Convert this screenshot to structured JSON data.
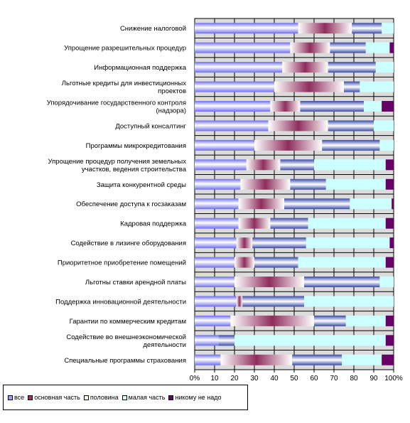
{
  "chart_data": {
    "type": "bar",
    "orientation": "horizontal",
    "stacked": "percent",
    "x_ticks": [
      "0%",
      "10",
      "20",
      "30",
      "40",
      "50",
      "60",
      "70",
      "80",
      "90",
      "100%"
    ],
    "xlim": [
      0,
      100
    ],
    "grid": true,
    "legend_position": "bottom-left",
    "categories": [
      "Снижение налоговой",
      "Упрощение разрешительных процедур",
      "Информационная поддержка",
      "Льготные кредиты для инвестиционных проектов",
      "Упорядочивание государственного контроля (надзора)",
      "Доступный консалтинг",
      "Программы микрокредитования",
      "Упрощение процедур получения земельных участков, ведения строительства",
      "Защита конкурентной среды",
      "Обеспечение доступа к госзаказам",
      "Кадровая поддержка",
      "Содействие в лизинге оборудования",
      "Приоритетное приобретение помещений",
      "Льготны ставки арендной платы",
      "Поддержка инновационной деятельности",
      "Гарантии по коммерческим кредитам",
      "Содействие во внешнеэкономической деятельности",
      "Специальные программы страхования"
    ],
    "series": [
      {
        "name": "все",
        "color": "#9999ff",
        "values": [
          52,
          48,
          44,
          40,
          38,
          37,
          30,
          26,
          23,
          22,
          22,
          21,
          20,
          20,
          21,
          18,
          12,
          13
        ]
      },
      {
        "name": "основная часть",
        "color": "#993366",
        "values": [
          27,
          20,
          23,
          35,
          15,
          30,
          34,
          17,
          25,
          23,
          16,
          8,
          10,
          35,
          3,
          42,
          0,
          36
        ]
      },
      {
        "name": "половина",
        "color": "#ffffcc",
        "values": [
          15,
          18,
          24,
          8,
          32,
          23,
          29,
          17,
          18,
          33,
          19,
          27,
          22,
          38,
          31,
          16,
          8,
          25
        ]
      },
      {
        "name": "малая часть",
        "color": "#ccffff",
        "values": [
          6,
          12,
          9,
          17,
          9,
          10,
          7,
          36,
          30,
          21,
          39,
          42,
          44,
          7,
          45,
          20,
          76,
          20
        ]
      },
      {
        "name": "никому не надо",
        "color": "#660066",
        "values": [
          0,
          2,
          0,
          0,
          6,
          0,
          0,
          4,
          4,
          1,
          4,
          2,
          4,
          0,
          0,
          4,
          4,
          6
        ]
      }
    ]
  }
}
